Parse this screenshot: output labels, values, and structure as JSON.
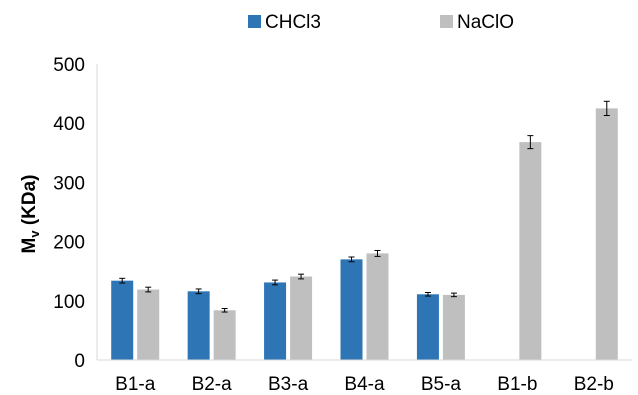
{
  "chart_data": {
    "type": "bar",
    "title": "",
    "xlabel": "",
    "ylabel": "M",
    "ylabel_subscript": "v",
    "ylabel_unit": " (KDa)",
    "ylim": [
      0,
      500
    ],
    "yticks": [
      0,
      100,
      200,
      300,
      400,
      500
    ],
    "grid": "none",
    "legend": "top-center",
    "categories": [
      "B1-a",
      "B2-a",
      "B3-a",
      "B4-a",
      "B5-a",
      "B1-b",
      "B2-b"
    ],
    "series": [
      {
        "name": "CHCl3",
        "color": "#2e75b6",
        "values": [
          134,
          116,
          131,
          170,
          111,
          null,
          null
        ],
        "errors": [
          4,
          4,
          4,
          4,
          3,
          null,
          null
        ]
      },
      {
        "name": "NaClO",
        "color": "#bfbfbf",
        "values": [
          119,
          84,
          141,
          180,
          110,
          368,
          425
        ],
        "errors": [
          4,
          3,
          4,
          5,
          3,
          11,
          12
        ]
      }
    ]
  }
}
